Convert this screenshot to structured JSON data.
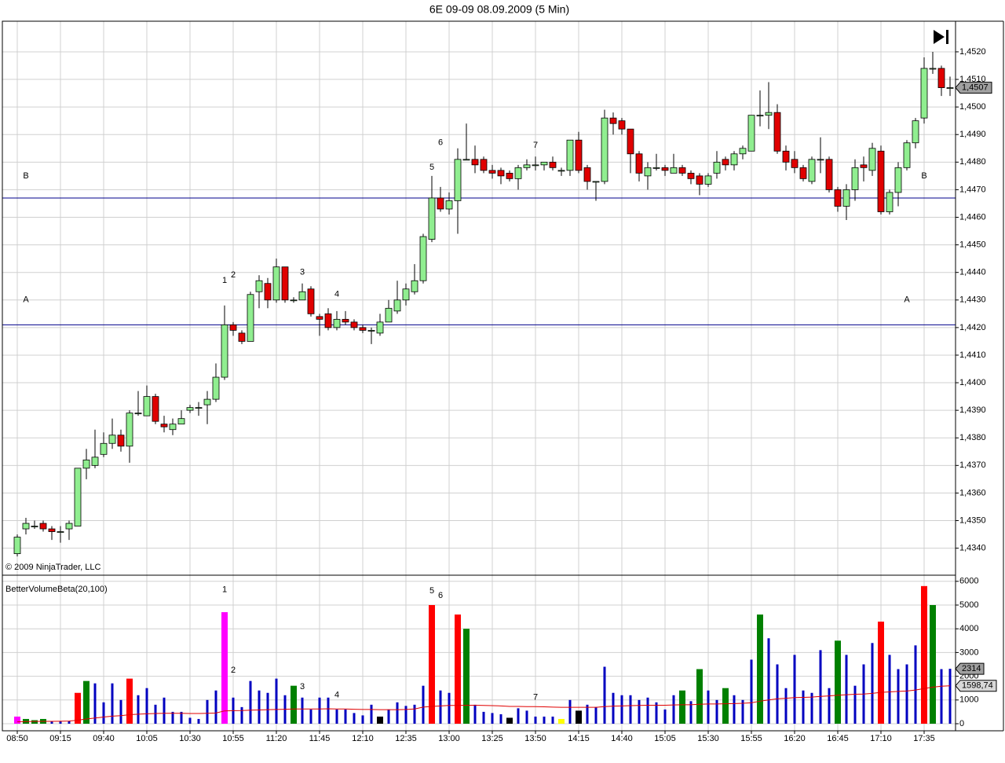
{
  "chart_data": [
    {
      "type": "candlestick",
      "title": "6E 09-09  08.09.2009 (5 Min)",
      "copyright": "© 2009 NinjaTrader, LLC",
      "up_color": "#90ee90",
      "down_color": "#e00000",
      "open": [
        1.4338,
        1.4347,
        1.4348,
        1.4349,
        1.4347,
        1.4346,
        1.4347,
        1.4348,
        1.4369,
        1.437,
        1.4374,
        1.4378,
        1.4381,
        1.4377,
        1.4389,
        1.4388,
        1.4395,
        1.4385,
        1.4383,
        1.4385,
        1.439,
        1.4391,
        1.4392,
        1.4394,
        1.4402,
        1.4421,
        1.4418,
        1.4415,
        1.4433,
        1.4436,
        1.443,
        1.4442,
        1.443,
        1.443,
        1.4434,
        1.4424,
        1.4425,
        1.442,
        1.4423,
        1.4422,
        1.442,
        1.4419,
        1.4418,
        1.4422,
        1.4426,
        1.443,
        1.4433,
        1.4437,
        1.4452,
        1.4467,
        1.4463,
        1.4466,
        1.4481,
        1.4481,
        1.4481,
        1.4477,
        1.4477,
        1.4476,
        1.4474,
        1.4478,
        1.4479,
        1.4479,
        1.448,
        1.4477,
        1.4477,
        1.4488,
        1.4478,
        1.4473,
        1.4473,
        1.4496,
        1.4495,
        1.4492,
        1.4483,
        1.4475,
        1.4478,
        1.4478,
        1.4476,
        1.4478,
        1.4476,
        1.4475,
        1.4472,
        1.4476,
        1.4481,
        1.4479,
        1.4483,
        1.4484,
        1.4497,
        1.4497,
        1.4498,
        1.4484,
        1.4481,
        1.4478,
        1.4473,
        1.4481,
        1.4481,
        1.447,
        1.4464,
        1.447,
        1.4479,
        1.4477,
        1.4484,
        1.4462,
        1.4469,
        1.4478,
        1.4487,
        1.4496,
        1.4514,
        1.4514,
        1.4507
      ],
      "high": [
        1.4345,
        1.4351,
        1.435,
        1.435,
        1.4348,
        1.4348,
        1.435,
        1.4369,
        1.4376,
        1.4383,
        1.4382,
        1.4387,
        1.4383,
        1.439,
        1.4397,
        1.4399,
        1.4396,
        1.4388,
        1.4387,
        1.439,
        1.4392,
        1.4393,
        1.4397,
        1.4407,
        1.4428,
        1.4422,
        1.4419,
        1.4433,
        1.4439,
        1.4438,
        1.4445,
        1.4442,
        1.4431,
        1.4436,
        1.4435,
        1.4425,
        1.4427,
        1.4426,
        1.4426,
        1.4423,
        1.4421,
        1.442,
        1.4425,
        1.443,
        1.4437,
        1.4436,
        1.4443,
        1.4454,
        1.4475,
        1.4471,
        1.4469,
        1.4485,
        1.4494,
        1.4486,
        1.4482,
        1.4479,
        1.4478,
        1.4477,
        1.4479,
        1.4481,
        1.4482,
        1.448,
        1.4482,
        1.4478,
        1.4488,
        1.4491,
        1.4479,
        1.4473,
        1.4499,
        1.4498,
        1.4496,
        1.4492,
        1.4484,
        1.448,
        1.4483,
        1.4479,
        1.4483,
        1.4479,
        1.4477,
        1.4476,
        1.4476,
        1.4484,
        1.4482,
        1.4484,
        1.4486,
        1.4497,
        1.4506,
        1.4509,
        1.4501,
        1.4486,
        1.4484,
        1.4479,
        1.4482,
        1.4489,
        1.4482,
        1.4471,
        1.4472,
        1.4481,
        1.4482,
        1.4487,
        1.4486,
        1.447,
        1.448,
        1.4488,
        1.4496,
        1.4518,
        1.452,
        1.4515,
        1.4511
      ],
      "low": [
        1.4337,
        1.4345,
        1.4347,
        1.4346,
        1.4343,
        1.4342,
        1.4343,
        1.4348,
        1.4365,
        1.4369,
        1.4373,
        1.4376,
        1.4375,
        1.4371,
        1.4388,
        1.4388,
        1.4385,
        1.4382,
        1.4381,
        1.4385,
        1.4389,
        1.4388,
        1.4385,
        1.4393,
        1.4401,
        1.4417,
        1.4414,
        1.4415,
        1.4427,
        1.4427,
        1.4429,
        1.4429,
        1.4429,
        1.443,
        1.4424,
        1.4417,
        1.4419,
        1.4419,
        1.4421,
        1.4419,
        1.4418,
        1.4414,
        1.4417,
        1.4422,
        1.4425,
        1.4428,
        1.4432,
        1.4436,
        1.4451,
        1.4462,
        1.4461,
        1.4454,
        1.4481,
        1.4476,
        1.4476,
        1.4474,
        1.4472,
        1.4473,
        1.447,
        1.4477,
        1.4477,
        1.4477,
        1.4477,
        1.4475,
        1.4475,
        1.4476,
        1.447,
        1.4466,
        1.4472,
        1.449,
        1.449,
        1.4476,
        1.4473,
        1.447,
        1.4477,
        1.4475,
        1.4476,
        1.4475,
        1.4472,
        1.4468,
        1.4471,
        1.4474,
        1.4477,
        1.4477,
        1.4481,
        1.4484,
        1.4493,
        1.4492,
        1.4483,
        1.4477,
        1.4476,
        1.4473,
        1.4472,
        1.4476,
        1.4469,
        1.4462,
        1.4459,
        1.4466,
        1.4473,
        1.4475,
        1.4461,
        1.4461,
        1.4464,
        1.4477,
        1.4485,
        1.4494,
        1.4512,
        1.4504,
        1.4504
      ],
      "close": [
        1.4344,
        1.4349,
        1.4348,
        1.4347,
        1.4346,
        1.4346,
        1.4349,
        1.4369,
        1.4372,
        1.4373,
        1.4378,
        1.4381,
        1.4377,
        1.4389,
        1.4389,
        1.4395,
        1.4386,
        1.4384,
        1.4385,
        1.4387,
        1.4391,
        1.4391,
        1.4394,
        1.4402,
        1.4421,
        1.4419,
        1.4415,
        1.4432,
        1.4437,
        1.443,
        1.4442,
        1.443,
        1.443,
        1.4433,
        1.4425,
        1.4423,
        1.442,
        1.4423,
        1.4422,
        1.442,
        1.4419,
        1.4419,
        1.4422,
        1.4427,
        1.443,
        1.4434,
        1.4437,
        1.4453,
        1.4467,
        1.4463,
        1.4466,
        1.4481,
        1.4481,
        1.4479,
        1.4477,
        1.4476,
        1.4475,
        1.4474,
        1.4478,
        1.4479,
        1.4479,
        1.448,
        1.4478,
        1.4477,
        1.4488,
        1.4477,
        1.4473,
        1.4473,
        1.4496,
        1.4494,
        1.4492,
        1.4483,
        1.4476,
        1.4478,
        1.4478,
        1.4477,
        1.4478,
        1.4476,
        1.4474,
        1.4472,
        1.4475,
        1.448,
        1.4479,
        1.4483,
        1.4485,
        1.4497,
        1.4497,
        1.4498,
        1.4484,
        1.448,
        1.4478,
        1.4474,
        1.4481,
        1.4481,
        1.447,
        1.4464,
        1.447,
        1.4478,
        1.4478,
        1.4485,
        1.4462,
        1.4469,
        1.4478,
        1.4487,
        1.4495,
        1.4514,
        1.4514,
        1.4507,
        1.4507
      ],
      "last_label": "1,4507",
      "levels": [
        {
          "value": 1.4467,
          "color": "#00008b"
        },
        {
          "value": 1.4421,
          "color": "#00008b"
        }
      ],
      "annotations": [
        {
          "text": "1",
          "x": 24,
          "y": 1.4437
        },
        {
          "text": "2",
          "x": 25,
          "y": 1.4439
        },
        {
          "text": "3",
          "x": 33,
          "y": 1.444
        },
        {
          "text": "4",
          "x": 37,
          "y": 1.4432
        },
        {
          "text": "5",
          "x": 48,
          "y": 1.4478
        },
        {
          "text": "6",
          "x": 49,
          "y": 1.4487
        },
        {
          "text": "7",
          "x": 60,
          "y": 1.4486
        },
        {
          "text": "A",
          "x": 1,
          "y": 1.443
        },
        {
          "text": "B",
          "x": 1,
          "y": 1.4475
        },
        {
          "text": "A",
          "x": 103,
          "y": 1.443
        },
        {
          "text": "B",
          "x": 105,
          "y": 1.4475
        }
      ],
      "ylim": [
        1.43302,
        1.45311
      ],
      "yticks": [
        {
          "value": 1.434,
          "label": "1,4340"
        },
        {
          "value": 1.435,
          "label": "1,4350"
        },
        {
          "value": 1.436,
          "label": "1,4360"
        },
        {
          "value": 1.437,
          "label": "1,4370"
        },
        {
          "value": 1.438,
          "label": "1,4380"
        },
        {
          "value": 1.439,
          "label": "1,4390"
        },
        {
          "value": 1.44,
          "label": "1,4400"
        },
        {
          "value": 1.441,
          "label": "1,4410"
        },
        {
          "value": 1.442,
          "label": "1,4420"
        },
        {
          "value": 1.443,
          "label": "1,4430"
        },
        {
          "value": 1.444,
          "label": "1,4440"
        },
        {
          "value": 1.445,
          "label": "1,4450"
        },
        {
          "value": 1.446,
          "label": "1,4460"
        },
        {
          "value": 1.447,
          "label": "1,4470"
        },
        {
          "value": 1.448,
          "label": "1,4480"
        },
        {
          "value": 1.449,
          "label": "1,4490"
        },
        {
          "value": 1.45,
          "label": "1,4500"
        },
        {
          "value": 1.451,
          "label": "1,4510"
        },
        {
          "value": 1.452,
          "label": "1,4520"
        }
      ],
      "grid": true
    },
    {
      "type": "bar",
      "title": "BetterVolumeBeta(20,100)",
      "categories": [
        "08:50",
        null,
        null,
        null,
        null,
        "09:15",
        null,
        null,
        null,
        null,
        "09:40",
        null,
        null,
        null,
        null,
        "10:05",
        null,
        null,
        null,
        null,
        "10:30",
        null,
        null,
        null,
        null,
        "10:55",
        null,
        null,
        null,
        null,
        "11:20",
        null,
        null,
        null,
        null,
        "11:45",
        null,
        null,
        null,
        null,
        "12:10",
        null,
        null,
        null,
        null,
        "12:35",
        null,
        null,
        null,
        null,
        "13:00",
        null,
        null,
        null,
        null,
        "13:25",
        null,
        null,
        null,
        null,
        "13:50",
        null,
        null,
        null,
        null,
        "14:15",
        null,
        null,
        null,
        null,
        "14:40",
        null,
        null,
        null,
        null,
        "15:05",
        null,
        null,
        null,
        null,
        "15:30",
        null,
        null,
        null,
        null,
        "15:55",
        null,
        null,
        null,
        null,
        "16:20",
        null,
        null,
        null,
        null,
        "16:45",
        null,
        null,
        null,
        null,
        "17:10",
        null,
        null,
        null,
        null,
        "17:35",
        null,
        null,
        null
      ],
      "values": [
        300,
        200,
        150,
        200,
        100,
        100,
        100,
        1300,
        1800,
        1700,
        900,
        1700,
        1000,
        1900,
        1200,
        1500,
        800,
        1100,
        500,
        500,
        250,
        200,
        1000,
        1400,
        4700,
        1100,
        700,
        1800,
        1400,
        1300,
        1900,
        1200,
        1600,
        1100,
        600,
        1100,
        1100,
        600,
        600,
        450,
        350,
        800,
        300,
        600,
        900,
        750,
        800,
        1600,
        5000,
        1400,
        1300,
        4600,
        4000,
        800,
        500,
        450,
        400,
        250,
        650,
        550,
        300,
        300,
        300,
        200,
        1000,
        550,
        800,
        700,
        2400,
        1300,
        1200,
        1200,
        1000,
        1100,
        900,
        600,
        1200,
        1400,
        950,
        2300,
        1400,
        1000,
        1500,
        1200,
        1000,
        2700,
        4600,
        3600,
        2500,
        1500,
        2900,
        1400,
        1300,
        3100,
        1500,
        3500,
        2900,
        1600,
        2500,
        3400,
        4300,
        2900,
        2300,
        2500,
        3300,
        5800,
        5000,
        2300,
        2314
      ],
      "colors": [
        "#ff00ff",
        "#008000",
        "#008000",
        "#008000",
        "#0000c0",
        "#0000c0",
        "#0000c0",
        "#ff0000",
        "#008000",
        "#0000c0",
        "#0000c0",
        "#0000c0",
        "#0000c0",
        "#ff0000",
        "#0000c0",
        "#0000c0",
        "#0000c0",
        "#0000c0",
        "#0000c0",
        "#0000c0",
        "#0000c0",
        "#0000c0",
        "#0000c0",
        "#0000c0",
        "#ff00ff",
        "#0000c0",
        "#0000c0",
        "#0000c0",
        "#0000c0",
        "#0000c0",
        "#0000c0",
        "#0000c0",
        "#008000",
        "#0000c0",
        "#0000c0",
        "#0000c0",
        "#0000c0",
        "#0000c0",
        "#0000c0",
        "#0000c0",
        "#0000c0",
        "#0000c0",
        "#000000",
        "#0000c0",
        "#0000c0",
        "#0000c0",
        "#0000c0",
        "#0000c0",
        "#ff0000",
        "#0000c0",
        "#0000c0",
        "#ff0000",
        "#008000",
        "#0000c0",
        "#0000c0",
        "#0000c0",
        "#0000c0",
        "#000000",
        "#0000c0",
        "#0000c0",
        "#0000c0",
        "#0000c0",
        "#0000c0",
        "#ffff00",
        "#0000c0",
        "#000000",
        "#0000c0",
        "#0000c0",
        "#0000c0",
        "#0000c0",
        "#0000c0",
        "#0000c0",
        "#0000c0",
        "#0000c0",
        "#0000c0",
        "#0000c0",
        "#0000c0",
        "#008000",
        "#0000c0",
        "#008000",
        "#0000c0",
        "#0000c0",
        "#008000",
        "#0000c0",
        "#0000c0",
        "#0000c0",
        "#008000",
        "#0000c0",
        "#0000c0",
        "#0000c0",
        "#0000c0",
        "#0000c0",
        "#0000c0",
        "#0000c0",
        "#0000c0",
        "#008000",
        "#0000c0",
        "#0000c0",
        "#0000c0",
        "#0000c0",
        "#ff0000",
        "#0000c0",
        "#0000c0",
        "#0000c0",
        "#0000c0",
        "#ff0000",
        "#008000",
        "#0000c0",
        "#0000c0"
      ],
      "ma": {
        "color": "#e00000",
        "values": [
          80,
          90,
          95,
          100,
          100,
          105,
          110,
          150,
          200,
          240,
          280,
          320,
          340,
          380,
          400,
          420,
          430,
          440,
          440,
          440,
          430,
          430,
          440,
          450,
          540,
          550,
          555,
          570,
          580,
          590,
          600,
          610,
          620,
          620,
          620,
          620,
          630,
          620,
          620,
          610,
          600,
          600,
          590,
          590,
          590,
          600,
          620,
          700,
          730,
          750,
          770,
          770,
          780,
          780,
          770,
          760,
          750,
          730,
          730,
          720,
          720,
          710,
          700,
          690,
          690,
          690,
          690,
          690,
          720,
          740,
          750,
          760,
          770,
          780,
          780,
          780,
          790,
          800,
          800,
          820,
          830,
          830,
          840,
          850,
          860,
          880,
          950,
          1000,
          1050,
          1070,
          1100,
          1110,
          1120,
          1150,
          1170,
          1200,
          1220,
          1240,
          1250,
          1280,
          1320,
          1340,
          1360,
          1380,
          1420,
          1480,
          1540,
          1580,
          1598.74
        ],
        "last_label": "1598,74"
      },
      "annotations": [
        {
          "text": "1",
          "x": 24,
          "y": 5650
        },
        {
          "text": "2",
          "x": 25,
          "y": 2250
        },
        {
          "text": "3",
          "x": 33,
          "y": 1550
        },
        {
          "text": "4",
          "x": 37,
          "y": 1200
        },
        {
          "text": "5",
          "x": 48,
          "y": 5600
        },
        {
          "text": "6",
          "x": 49,
          "y": 5400
        },
        {
          "text": "7",
          "x": 60,
          "y": 1100
        }
      ],
      "ylim": [
        -298,
        6258
      ],
      "yticks": [
        0,
        1000,
        2000,
        3000,
        4000,
        5000,
        6000
      ],
      "grid": true
    }
  ]
}
